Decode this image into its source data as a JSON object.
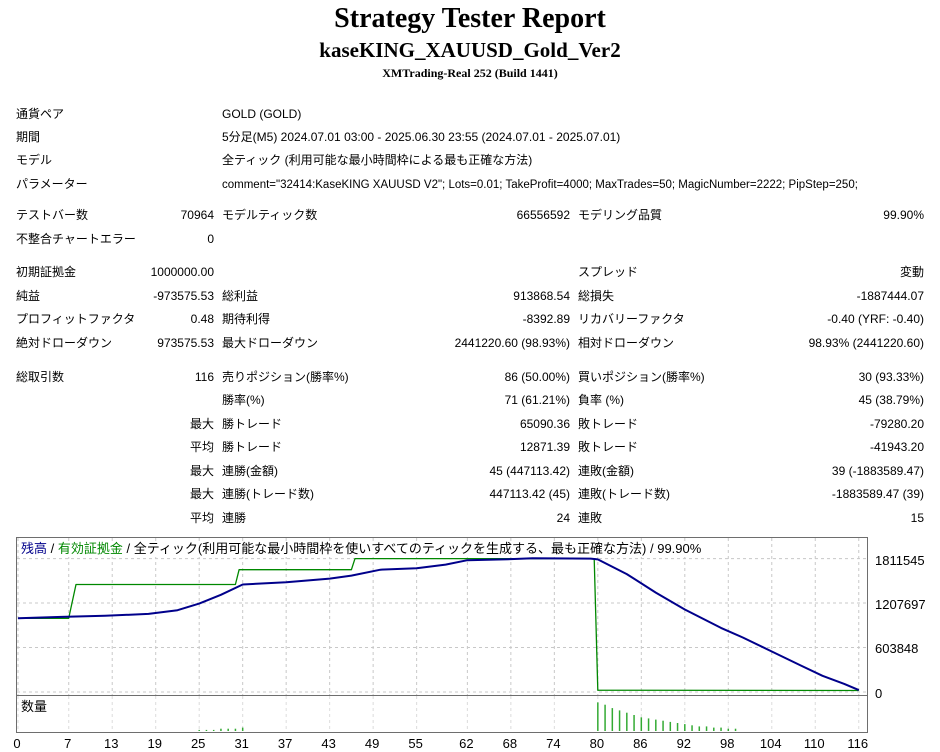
{
  "header": {
    "title": "Strategy Tester Report",
    "ea_name": "kaseKING_XAUUSD_Gold_Ver2",
    "server": "XMTrading-Real 252 (Build 1441)"
  },
  "info": {
    "symbol": {
      "label": "通貨ペア",
      "value": "GOLD (GOLD)"
    },
    "period": {
      "label": "期間",
      "value": "5分足(M5) 2024.07.01 03:00 - 2025.06.30 23:55 (2024.07.01 - 2025.07.01)"
    },
    "model": {
      "label": "モデル",
      "value": "全ティック (利用可能な最小時間枠による最も正確な方法)"
    },
    "params": {
      "label": "パラメーター",
      "value": "comment=\"32414:KaseKING XAUUSD V2\"; Lots=0.01; TakeProfit=4000; MaxTrades=50; MagicNumber=2222; PipStep=250;"
    }
  },
  "stats": {
    "bars": {
      "label": "テストバー数",
      "value": "70964"
    },
    "ticks": {
      "label": "モデルティック数",
      "value": "66556592"
    },
    "quality": {
      "label": "モデリング品質",
      "value": "99.90%"
    },
    "mismatch": {
      "label": "不整合チャートエラー",
      "value": "0"
    },
    "deposit": {
      "label": "初期証拠金",
      "value": "1000000.00"
    },
    "spread": {
      "label": "スプレッド",
      "value": "変動"
    },
    "net_profit": {
      "label": "純益",
      "value": "-973575.53"
    },
    "gross_profit": {
      "label": "総利益",
      "value": "913868.54"
    },
    "gross_loss": {
      "label": "総損失",
      "value": "-1887444.07"
    },
    "profit_factor": {
      "label": "プロフィットファクタ",
      "value": "0.48"
    },
    "expected_payoff": {
      "label": "期待利得",
      "value": "-8392.89"
    },
    "recovery_factor": {
      "label": "リカバリーファクタ",
      "value": "-0.40 (YRF: -0.40)"
    },
    "abs_dd": {
      "label": "絶対ドローダウン",
      "value": "973575.53"
    },
    "max_dd": {
      "label": "最大ドローダウン",
      "value": "2441220.60 (98.93%)"
    },
    "rel_dd": {
      "label": "相対ドローダウン",
      "value": "98.93% (2441220.60)"
    },
    "total_trades": {
      "label": "総取引数",
      "value": "116"
    },
    "short_pos": {
      "label": "売りポジション(勝率%)",
      "value": "86 (50.00%)"
    },
    "long_pos": {
      "label": "買いポジション(勝率%)",
      "value": "30 (93.33%)"
    },
    "win_rate": {
      "label": "勝率(%)",
      "value": "71 (61.21%)"
    },
    "loss_rate": {
      "label": "負率 (%)",
      "value": "45 (38.79%)"
    },
    "largest": {
      "prefix": "最大",
      "win_label": "勝トレード",
      "win_value": "65090.36",
      "loss_label": "敗トレード",
      "loss_value": "-79280.20"
    },
    "average": {
      "prefix": "平均",
      "win_label": "勝トレード",
      "win_value": "12871.39",
      "loss_label": "敗トレード",
      "loss_value": "-41943.20"
    },
    "max_consec_amount": {
      "prefix": "最大",
      "win_label": "連勝(金額)",
      "win_value": "45 (447113.42)",
      "loss_label": "連敗(金額)",
      "loss_value": "39 (-1883589.47)"
    },
    "max_consec_trades": {
      "prefix": "最大",
      "win_label": "連勝(トレード数)",
      "win_value": "447113.42 (45)",
      "loss_label": "連敗(トレード数)",
      "loss_value": "-1883589.47 (39)"
    },
    "avg_consec": {
      "prefix": "平均",
      "win_label": "連勝",
      "win_value": "24",
      "loss_label": "連敗",
      "loss_value": "15"
    }
  },
  "chart": {
    "legend": {
      "balance": "残高",
      "sep1": " / ",
      "equity": "有効証拠金",
      "rest": " / 全ティック(利用可能な最小時間枠を使いすべてのティックを生成する、最も正確な方法) / 99.90%"
    },
    "volume_label": "数量",
    "y_tick_labels": [
      "1811545",
      "1207697",
      "603848",
      "0"
    ],
    "x_tick_labels": [
      "0",
      "7",
      "13",
      "19",
      "25",
      "31",
      "37",
      "43",
      "49",
      "55",
      "62",
      "68",
      "74",
      "80",
      "86",
      "92",
      "98",
      "104",
      "110",
      "116"
    ]
  },
  "chart_data": {
    "type": "line",
    "title": "",
    "xlabel": "",
    "ylabel": "",
    "ylim": [
      0,
      2050000
    ],
    "xlim": [
      0,
      117
    ],
    "x_ticks": [
      0,
      7,
      13,
      19,
      25,
      31,
      37,
      43,
      49,
      55,
      62,
      68,
      74,
      80,
      86,
      92,
      98,
      104,
      110,
      116
    ],
    "y_ticks": [
      0,
      603848,
      1207697,
      1811545
    ],
    "grid": true,
    "series": [
      {
        "name": "残高",
        "color": "#00008b",
        "x": [
          0,
          6,
          12,
          18,
          22,
          25,
          28,
          31,
          37,
          43,
          46,
          50,
          55,
          59,
          62,
          67,
          71,
          79,
          80,
          84,
          88,
          92,
          97,
          100,
          104,
          108,
          111,
          114,
          116
        ],
        "values": [
          1000000,
          1020000,
          1035000,
          1060000,
          1110000,
          1200000,
          1320000,
          1460000,
          1490000,
          1540000,
          1580000,
          1660000,
          1680000,
          1730000,
          1790000,
          1800000,
          1815000,
          1811545,
          1800000,
          1600000,
          1350000,
          1120000,
          870000,
          740000,
          550000,
          360000,
          220000,
          110000,
          26424
        ]
      },
      {
        "name": "有効証拠金",
        "color": "#008800",
        "x": [
          0,
          6,
          7,
          8,
          30,
          30.5,
          46,
          46.5,
          79,
          79.5,
          80,
          116
        ],
        "values": [
          1000000,
          1000000,
          1000000,
          1460000,
          1460000,
          1660000,
          1660000,
          1811545,
          1811545,
          1811545,
          25000,
          20000
        ]
      }
    ],
    "volume": {
      "name": "数量",
      "x": [
        25,
        26,
        27,
        28,
        29,
        30,
        31,
        80,
        81,
        82,
        83,
        84,
        85,
        86,
        87,
        88,
        89,
        90,
        91,
        92,
        93,
        94,
        95,
        96,
        97,
        98,
        99
      ],
      "values": [
        0.01,
        0.01,
        0.01,
        0.02,
        0.02,
        0.02,
        0.03,
        0.25,
        0.23,
        0.2,
        0.18,
        0.16,
        0.14,
        0.12,
        0.11,
        0.1,
        0.09,
        0.08,
        0.07,
        0.06,
        0.05,
        0.04,
        0.04,
        0.03,
        0.03,
        0.02,
        0.02
      ],
      "ymax": 0.28
    }
  }
}
